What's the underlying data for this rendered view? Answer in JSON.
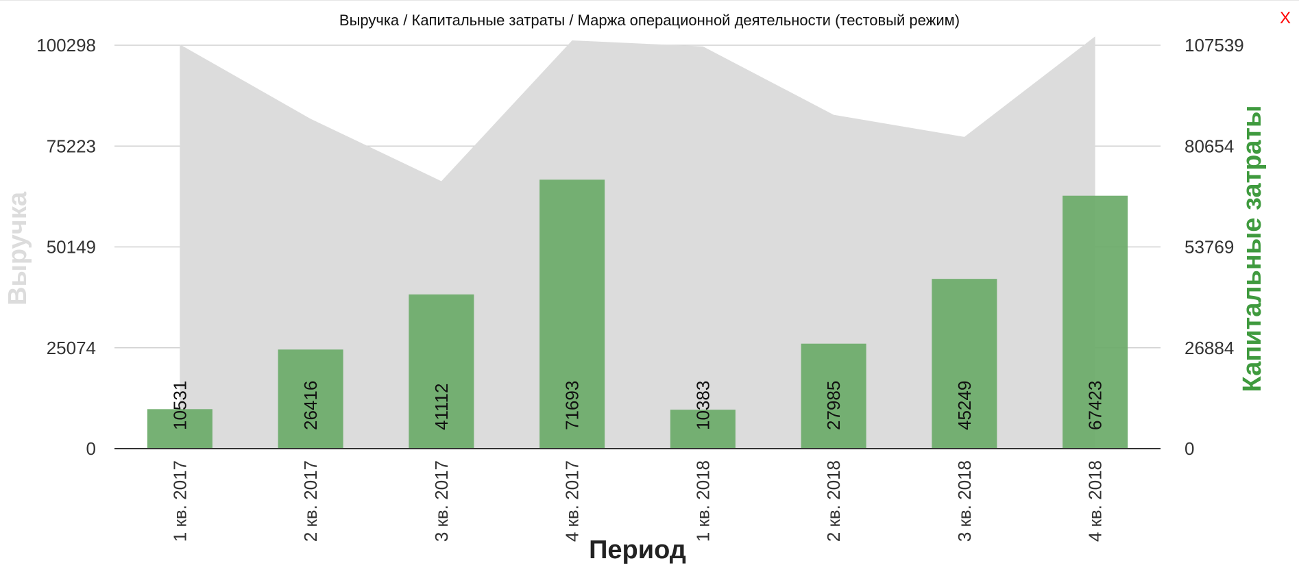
{
  "header": {
    "title": "Выручка / Капитальные затраты / Маржа операционной деятельности (тестовый режим)",
    "close_label": "X"
  },
  "chart_data": {
    "type": "bar",
    "title": "Выручка / Капитальные затраты / Маржа операционной деятельности (тестовый режим)",
    "xlabel": "Период",
    "ylabel_left": "Выручка",
    "ylabel_right": "Капитальные затраты",
    "categories": [
      "1 кв. 2017",
      "2 кв. 2017",
      "3 кв. 2017",
      "4 кв. 2017",
      "1 кв. 2018",
      "2 кв. 2018",
      "3 кв. 2018",
      "4 кв. 2018"
    ],
    "left_ticks": [
      0,
      25074,
      50149,
      75223,
      100298
    ],
    "right_ticks": [
      0,
      26884,
      53769,
      80654,
      107539
    ],
    "ylim_left": [
      0,
      100298
    ],
    "ylim_right": [
      0,
      107539
    ],
    "grid": true,
    "series": [
      {
        "name": "Выручка",
        "type": "area",
        "axis": "left",
        "color": "#dcdcdc",
        "values": [
          100500,
          82000,
          66500,
          101500,
          100000,
          83000,
          77500,
          102500
        ]
      },
      {
        "name": "Капитальные затраты",
        "type": "bar",
        "axis": "right",
        "color": "#6aaa68",
        "values": [
          10531,
          26416,
          41112,
          71693,
          10383,
          27985,
          45249,
          67423
        ]
      }
    ],
    "colors": {
      "left_axis_title": "#dcdcdc",
      "right_axis_title": "#3f9a3e",
      "grid": "#d0d0d0",
      "close": "#ff0000"
    }
  }
}
